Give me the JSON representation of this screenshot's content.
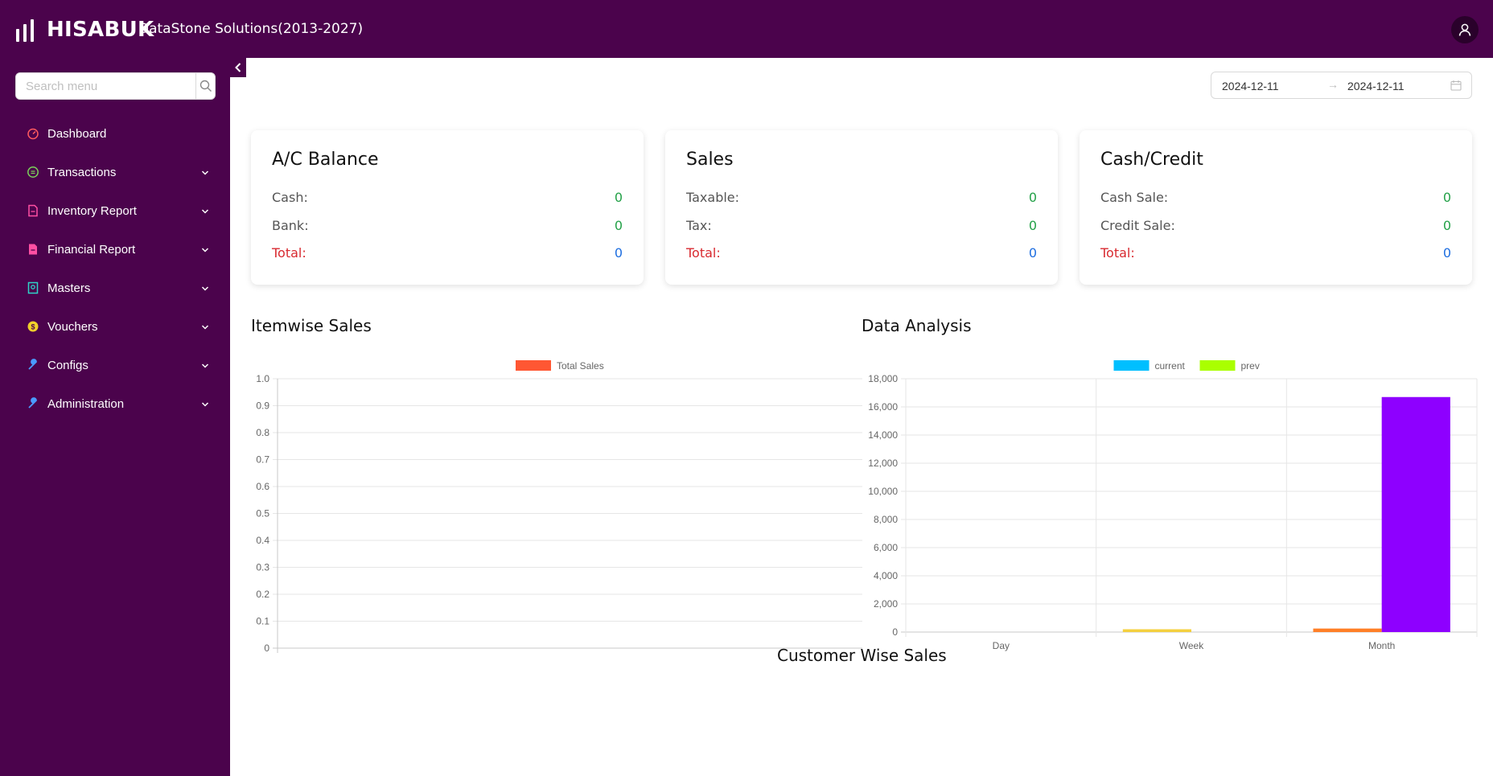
{
  "app": {
    "brand": "HISABUK",
    "company": "DataStone Solutions(2013-2027)"
  },
  "search": {
    "placeholder": "Search menu"
  },
  "sidebar": {
    "items": [
      {
        "label": "Dashboard",
        "icon": "dashboard-icon",
        "color": "#ff5a5f",
        "has_children": false
      },
      {
        "label": "Transactions",
        "icon": "transactions-icon",
        "color": "#7bd35a",
        "has_children": true
      },
      {
        "label": "Inventory Report",
        "icon": "inventory-report-icon",
        "color": "#ff4fa3",
        "has_children": true
      },
      {
        "label": "Financial Report",
        "icon": "financial-report-icon",
        "color": "#ff4fa3",
        "has_children": true
      },
      {
        "label": "Masters",
        "icon": "masters-icon",
        "color": "#2fd3c7",
        "has_children": true
      },
      {
        "label": "Vouchers",
        "icon": "vouchers-icon",
        "color": "#f2d12b",
        "has_children": true
      },
      {
        "label": "Configs",
        "icon": "configs-icon",
        "color": "#4a9bff",
        "has_children": true
      },
      {
        "label": "Administration",
        "icon": "administration-icon",
        "color": "#4a9bff",
        "has_children": true
      }
    ]
  },
  "date_range": {
    "start": "2024-12-11",
    "end": "2024-12-11",
    "separator": "→"
  },
  "cards": [
    {
      "title": "A/C Balance",
      "rows": [
        {
          "label": "Cash:",
          "value": "0"
        },
        {
          "label": "Bank:",
          "value": "0"
        }
      ],
      "total": {
        "label": "Total:",
        "value": "0"
      }
    },
    {
      "title": "Sales",
      "rows": [
        {
          "label": "Taxable:",
          "value": "0"
        },
        {
          "label": "Tax:",
          "value": "0"
        }
      ],
      "total": {
        "label": "Total:",
        "value": "0"
      }
    },
    {
      "title": "Cash/Credit",
      "rows": [
        {
          "label": "Cash Sale:",
          "value": "0"
        },
        {
          "label": "Credit Sale:",
          "value": "0"
        }
      ],
      "total": {
        "label": "Total:",
        "value": "0"
      }
    }
  ],
  "sections": {
    "itemwise": "Itemwise Sales",
    "analysis": "Data Analysis",
    "customer": "Customer Wise Sales"
  },
  "colors": {
    "primary": "#4b034c",
    "positive": "#24a148",
    "total_label": "#d8292f",
    "total_value": "#1f6fe0"
  },
  "chart_data": [
    {
      "type": "bar",
      "title": "",
      "series": [
        {
          "name": "Total Sales",
          "color": "#ff5733",
          "values": []
        }
      ],
      "categories": [],
      "ylim": [
        0,
        1
      ],
      "yticks": [
        0,
        0.1,
        0.2,
        0.3,
        0.4,
        0.5,
        0.6,
        0.7,
        0.8,
        0.9,
        1.0
      ],
      "ytick_labels": [
        "0",
        "0.1",
        "0.2",
        "0.3",
        "0.4",
        "0.5",
        "0.6",
        "0.7",
        "0.8",
        "0.9",
        "1.0"
      ],
      "grid": true,
      "legend": "top-center"
    },
    {
      "type": "bar",
      "title": "",
      "categories": [
        "Day",
        "Week",
        "Month"
      ],
      "series": [
        {
          "name": "current",
          "legend_color": "#00bfff",
          "values": [
            0,
            200,
            250
          ],
          "bar_colors": [
            "#00bfff",
            "#f4d03f",
            "#ff7f27"
          ]
        },
        {
          "name": "prev",
          "legend_color": "#aaff00",
          "values": [
            0,
            0,
            16700
          ],
          "bar_colors": [
            "#aaff00",
            "#aaff00",
            "#8e00ff"
          ]
        }
      ],
      "ylim": [
        0,
        18000
      ],
      "yticks": [
        0,
        2000,
        4000,
        6000,
        8000,
        10000,
        12000,
        14000,
        16000,
        18000
      ],
      "ytick_labels": [
        "0",
        "2,000",
        "4,000",
        "6,000",
        "8,000",
        "10,000",
        "12,000",
        "14,000",
        "16,000",
        "18,000"
      ],
      "grid": true,
      "legend": "top-center"
    }
  ]
}
